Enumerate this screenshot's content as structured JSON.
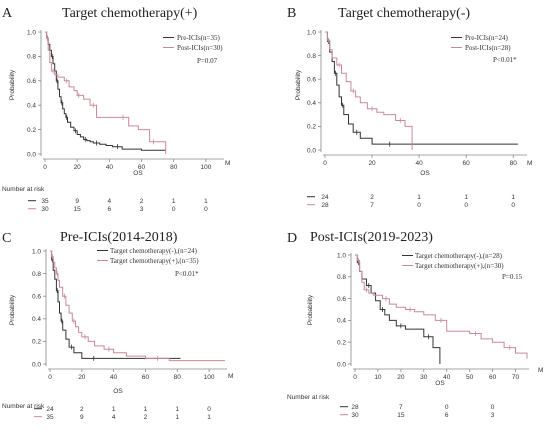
{
  "colors": {
    "pre": "#333333",
    "post": "#c98a96",
    "axis": "#888888"
  },
  "chart_data": [
    {
      "panel": "A",
      "type": "line",
      "title": "Target chemotherapy(+)",
      "xlabel": "OS",
      "ylabel": "Probability",
      "x_ticks": [
        "0",
        "20",
        "40",
        "60",
        "80",
        "100"
      ],
      "x_end_label": "M",
      "y_ticks": [
        "0.0",
        "0.2",
        "0.4",
        "0.6",
        "0.8",
        "1.0"
      ],
      "xlim": [
        0,
        110
      ],
      "ylim": [
        0,
        1
      ],
      "pvalue": "P=0.07",
      "risk_title": "Number at risk",
      "series": [
        {
          "name": "Pre-ICIs(n=35)",
          "color_key": "pre",
          "x": [
            0,
            1,
            2,
            3,
            4,
            5,
            6,
            7,
            8,
            9,
            10,
            11,
            12,
            13,
            14,
            16,
            18,
            20,
            22,
            24,
            26,
            28,
            30,
            34,
            38,
            42,
            48,
            60,
            75
          ],
          "y": [
            1.0,
            0.95,
            0.9,
            0.85,
            0.8,
            0.74,
            0.68,
            0.6,
            0.53,
            0.47,
            0.42,
            0.37,
            0.33,
            0.3,
            0.26,
            0.22,
            0.19,
            0.16,
            0.14,
            0.12,
            0.11,
            0.1,
            0.09,
            0.08,
            0.07,
            0.06,
            0.04,
            0.03,
            0.03
          ]
        },
        {
          "name": "Post-ICIs(n=30)",
          "color_key": "post",
          "x": [
            0,
            1,
            2,
            3,
            4,
            6,
            8,
            12,
            15,
            18,
            20,
            22,
            24,
            28,
            32,
            38,
            45,
            52,
            58,
            65,
            70,
            75
          ],
          "y": [
            1.0,
            0.95,
            0.85,
            0.75,
            0.68,
            0.65,
            0.63,
            0.6,
            0.55,
            0.52,
            0.48,
            0.48,
            0.45,
            0.4,
            0.3,
            0.3,
            0.3,
            0.23,
            0.2,
            0.1,
            0.1,
            0.0
          ]
        }
      ],
      "risk_x": [
        0,
        20,
        40,
        60,
        80,
        100
      ],
      "risk_rows": [
        {
          "values": [
            "35",
            "9",
            "4",
            "2",
            "1",
            "1"
          ],
          "color_key": "pre"
        },
        {
          "values": [
            "30",
            "15",
            "6",
            "3",
            "0",
            "0"
          ],
          "color_key": "post"
        }
      ]
    },
    {
      "panel": "B",
      "type": "line",
      "title": "Target chemotherapy(-)",
      "xlabel": "OS",
      "ylabel": "Probability",
      "x_ticks": [
        "0",
        "20",
        "40",
        "60",
        "80"
      ],
      "x_end_label": "M",
      "y_ticks": [
        "0.0",
        "0.2",
        "0.4",
        "0.6",
        "0.8",
        "1.0"
      ],
      "xlim": [
        0,
        85
      ],
      "ylim": [
        0,
        1
      ],
      "pvalue": "P<0.01*",
      "risk_title": "",
      "series": [
        {
          "name": "Pre-ICIs(n=24)",
          "color_key": "pre",
          "x": [
            0,
            1,
            2,
            3,
            4,
            5,
            6,
            7,
            8,
            10,
            12,
            15,
            20,
            25,
            30,
            82
          ],
          "y": [
            1.0,
            0.92,
            0.83,
            0.75,
            0.65,
            0.55,
            0.45,
            0.38,
            0.3,
            0.22,
            0.15,
            0.1,
            0.05,
            0.05,
            0.05,
            0.05
          ]
        },
        {
          "name": "Post-ICIs(n=28)",
          "color_key": "post",
          "x": [
            0,
            1,
            2,
            3,
            5,
            7,
            9,
            11,
            13,
            15,
            18,
            22,
            25,
            30,
            34,
            37
          ],
          "y": [
            1.0,
            0.93,
            0.85,
            0.78,
            0.72,
            0.65,
            0.58,
            0.5,
            0.45,
            0.4,
            0.35,
            0.32,
            0.3,
            0.25,
            0.2,
            0.0
          ]
        }
      ],
      "risk_x": [
        0,
        20,
        40,
        60,
        80
      ],
      "risk_rows": [
        {
          "values": [
            "24",
            "2",
            "1",
            "1",
            "1"
          ],
          "color_key": "pre"
        },
        {
          "values": [
            "28",
            "7",
            "0",
            "0",
            "0"
          ],
          "color_key": "post"
        }
      ]
    },
    {
      "panel": "C",
      "type": "line",
      "title": "Pre-ICIs(2014-2018)",
      "xlabel": "OS",
      "ylabel": "Probability",
      "x_ticks": [
        "0",
        "20",
        "40",
        "60",
        "80",
        "100"
      ],
      "x_end_label": "M",
      "y_ticks": [
        "0.0",
        "0.2",
        "0.4",
        "0.6",
        "0.8",
        "1.0"
      ],
      "xlim": [
        0,
        110
      ],
      "ylim": [
        0,
        1
      ],
      "pvalue": "P<0.01*",
      "risk_title": "Number at risk",
      "series": [
        {
          "name": "Target chemotherapy(-),(n=24)",
          "color_key": "pre",
          "x": [
            0,
            1,
            2,
            3,
            4,
            5,
            6,
            7,
            8,
            10,
            12,
            15,
            20,
            25,
            30,
            82
          ],
          "y": [
            1.0,
            0.92,
            0.83,
            0.75,
            0.65,
            0.55,
            0.45,
            0.38,
            0.3,
            0.22,
            0.15,
            0.1,
            0.05,
            0.05,
            0.05,
            0.05
          ]
        },
        {
          "name": "Target chemotherapy(+),(n=35)",
          "color_key": "post",
          "x": [
            0,
            1,
            2,
            3,
            4,
            5,
            6,
            8,
            10,
            12,
            14,
            16,
            18,
            20,
            24,
            28,
            34,
            40,
            48,
            60,
            75,
            110
          ],
          "y": [
            1.0,
            0.95,
            0.9,
            0.85,
            0.8,
            0.74,
            0.68,
            0.6,
            0.52,
            0.45,
            0.38,
            0.33,
            0.28,
            0.24,
            0.2,
            0.16,
            0.13,
            0.1,
            0.07,
            0.05,
            0.03,
            0.03
          ]
        }
      ],
      "risk_x": [
        0,
        20,
        40,
        60,
        80,
        100
      ],
      "risk_rows": [
        {
          "values": [
            "24",
            "2",
            "1",
            "1",
            "1",
            "0"
          ],
          "color_key": "pre"
        },
        {
          "values": [
            "35",
            "9",
            "4",
            "2",
            "1",
            "1"
          ],
          "color_key": "post"
        }
      ]
    },
    {
      "panel": "D",
      "type": "line",
      "title": "Post-ICIs(2019-2023)",
      "xlabel": "OS",
      "ylabel": "Probability",
      "x_ticks": [
        "0",
        "10",
        "20",
        "30",
        "40",
        "50",
        "60",
        "70"
      ],
      "x_end_label": "M",
      "y_ticks": [
        "0.0",
        "0.2",
        "0.4",
        "0.6",
        "0.8",
        "1.0"
      ],
      "xlim": [
        0,
        75
      ],
      "ylim": [
        0,
        1
      ],
      "pvalue": "P=0.15",
      "risk_title": "Number at risk",
      "series": [
        {
          "name": "Target chemotherapy(-),(n=28)",
          "color_key": "pre",
          "x": [
            0,
            1,
            2,
            3,
            5,
            7,
            9,
            11,
            13,
            15,
            18,
            22,
            25,
            30,
            34,
            37
          ],
          "y": [
            1.0,
            0.93,
            0.85,
            0.78,
            0.72,
            0.65,
            0.58,
            0.5,
            0.45,
            0.4,
            0.35,
            0.32,
            0.32,
            0.25,
            0.15,
            0.0
          ]
        },
        {
          "name": "Target chemotherapy(+),(n=30)",
          "color_key": "post",
          "x": [
            0,
            1,
            2,
            3,
            4,
            6,
            8,
            12,
            15,
            18,
            22,
            26,
            30,
            35,
            40,
            45,
            50,
            55,
            60,
            65,
            70,
            75
          ],
          "y": [
            1.0,
            0.95,
            0.85,
            0.75,
            0.68,
            0.65,
            0.63,
            0.6,
            0.55,
            0.52,
            0.5,
            0.48,
            0.45,
            0.4,
            0.3,
            0.3,
            0.28,
            0.23,
            0.2,
            0.15,
            0.1,
            0.05
          ]
        }
      ],
      "risk_x": [
        0,
        20,
        40,
        60
      ],
      "risk_rows": [
        {
          "values": [
            "28",
            "7",
            "0",
            "0"
          ],
          "color_key": "pre"
        },
        {
          "values": [
            "30",
            "15",
            "6",
            "3"
          ],
          "color_key": "post"
        }
      ]
    }
  ]
}
